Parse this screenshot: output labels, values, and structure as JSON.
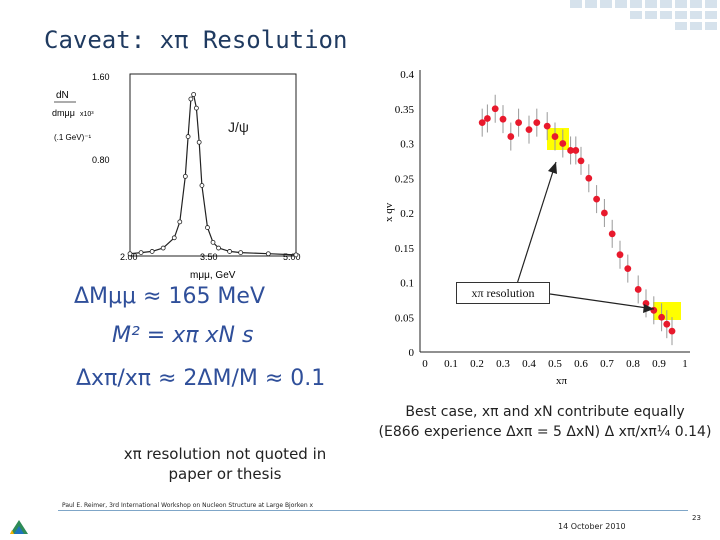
{
  "slide": {
    "title": "Caveat: xπ Resolution",
    "formula_delta_m": "ΔMμμ ≈ 165 MeV",
    "formula_m2": "M² = xπ xN s",
    "formula_ratio": "Δxπ/xπ ≈ 2ΔM/M ≈ 0.1",
    "note_left": "xπ resolution not quoted in paper or thesis",
    "note_right_1": "Best case, xπ and xN contribute equally",
    "note_right_2": "(E866 experience Δxπ = 5 ΔxN) Δ xπ/xπ¼ 0.14)",
    "footer_author": "Paul E. Reimer, 3rd International Workshop on Nucleon Structure at Large Bjorken x",
    "footer_date": "14 October 2010",
    "footer_page": "23"
  },
  "left_plot": {
    "ylabel_top": "dN",
    "ylabel_bottom": "dmμμ",
    "ylabel_scale": "x10³",
    "ylabel_units": "(.1 GeV)⁻¹",
    "y_ticks": [
      "1.60",
      "0.80"
    ],
    "x_ticks": [
      "2.00",
      "3.50",
      "5.00"
    ],
    "xlabel": "mμμ, GeV",
    "peak_label": "J/ψ",
    "curve": {
      "x": [
        2.0,
        2.2,
        2.4,
        2.6,
        2.8,
        2.9,
        3.0,
        3.05,
        3.1,
        3.15,
        3.2,
        3.25,
        3.3,
        3.4,
        3.5,
        3.6,
        3.8,
        4.0,
        4.5,
        5.0
      ],
      "y": [
        0.02,
        0.03,
        0.04,
        0.07,
        0.16,
        0.3,
        0.7,
        1.05,
        1.38,
        1.42,
        1.3,
        1.0,
        0.62,
        0.25,
        0.12,
        0.07,
        0.04,
        0.03,
        0.02,
        0.01
      ]
    }
  },
  "right_plot": {
    "ylabel": "x qv",
    "xlabel": "xπ",
    "y_ticks": [
      "0",
      "0.05",
      "0.1",
      "0.15",
      "0.2",
      "0.25",
      "0.3",
      "0.35",
      "0.4"
    ],
    "x_ticks": [
      "0",
      "0.1",
      "0.2",
      "0.3",
      "0.4",
      "0.5",
      "0.6",
      "0.7",
      "0.8",
      "0.9",
      "1"
    ],
    "callout": "xπ resolution",
    "highlight_color": "#ffff00",
    "point_color": "#e8192c",
    "points": {
      "x": [
        0.22,
        0.24,
        0.27,
        0.3,
        0.33,
        0.36,
        0.4,
        0.43,
        0.47,
        0.5,
        0.53,
        0.56,
        0.58,
        0.6,
        0.63,
        0.66,
        0.69,
        0.72,
        0.75,
        0.78,
        0.82,
        0.85,
        0.88,
        0.91,
        0.93,
        0.95
      ],
      "y": [
        0.33,
        0.336,
        0.35,
        0.335,
        0.31,
        0.33,
        0.32,
        0.33,
        0.325,
        0.31,
        0.3,
        0.29,
        0.29,
        0.275,
        0.25,
        0.22,
        0.2,
        0.17,
        0.14,
        0.12,
        0.09,
        0.07,
        0.06,
        0.05,
        0.04,
        0.03
      ]
    }
  }
}
